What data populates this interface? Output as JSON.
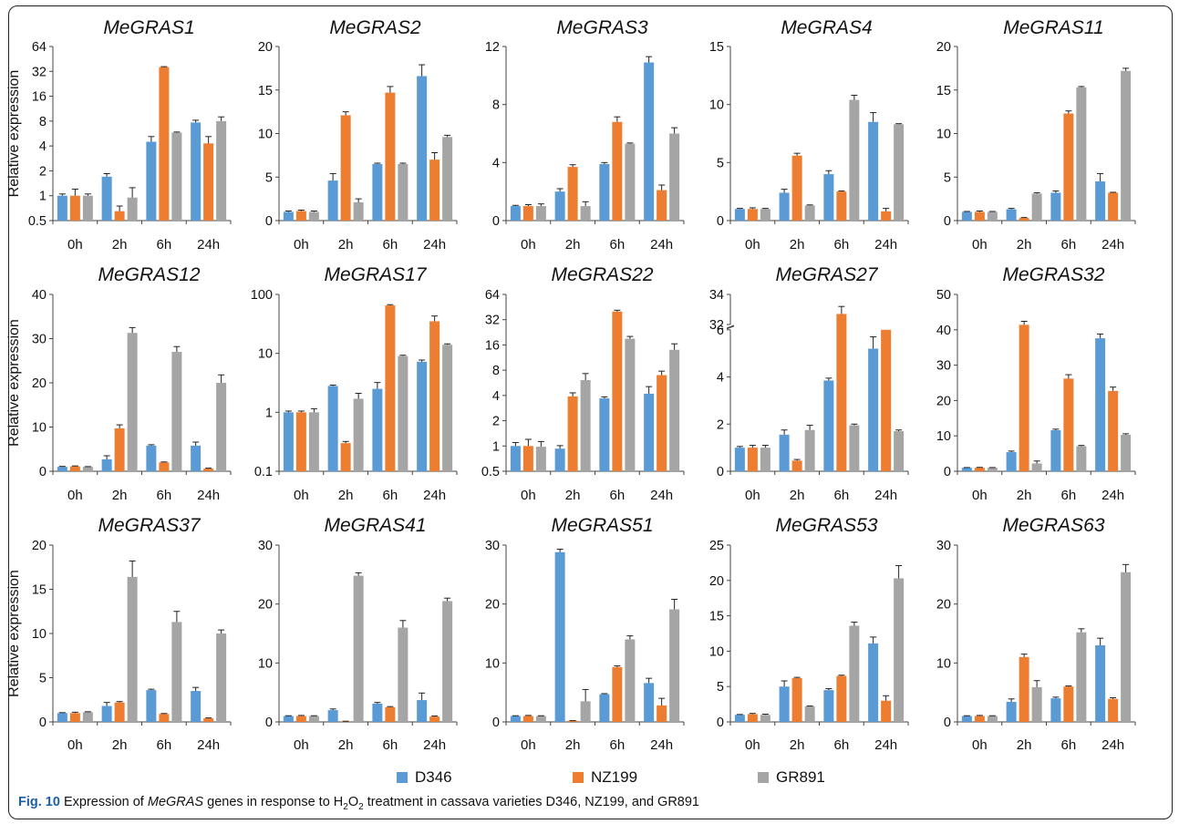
{
  "legend": {
    "items": [
      {
        "label": "D346",
        "color": "#5b9bd5"
      },
      {
        "label": "NZ199",
        "color": "#ed7d31"
      },
      {
        "label": "GR891",
        "color": "#a5a5a5"
      }
    ]
  },
  "caption": {
    "fig_label": "Fig. 10",
    "text_1": " Expression of ",
    "gene": "MeGRAS",
    "text_2": " genes in response to H",
    "sub_1": "2",
    "text_3": "O",
    "sub_2": "2",
    "text_4": " treatment in cassava varieties D346, NZ199, and GR891"
  },
  "chart_data": [
    {
      "type": "bar",
      "title": "MeGRAS1",
      "ylabel": "Relative expression",
      "yscale": "log2",
      "ylim": [
        0.5,
        64
      ],
      "yticks": [
        0.5,
        1,
        2,
        4,
        8,
        16,
        32,
        64
      ],
      "ytick_labels": [
        "0.5",
        "1",
        "2",
        "4",
        "8",
        "16",
        "32",
        "64"
      ],
      "categories": [
        "0h",
        "2h",
        "6h",
        "24h"
      ],
      "series": [
        {
          "name": "D346",
          "values": [
            1.0,
            1.7,
            4.5,
            7.7
          ],
          "errors": [
            0.05,
            0.15,
            0.7,
            0.5
          ]
        },
        {
          "name": "NZ199",
          "values": [
            1.0,
            0.65,
            36,
            4.3
          ],
          "errors": [
            0.2,
            0.1,
            0.5,
            0.9
          ]
        },
        {
          "name": "GR891",
          "values": [
            1.0,
            0.95,
            5.8,
            8.0
          ],
          "errors": [
            0.05,
            0.3,
            0.1,
            1.0
          ]
        }
      ]
    },
    {
      "type": "bar",
      "title": "MeGRAS2",
      "ylabel": "",
      "yscale": "linear",
      "ylim": [
        0,
        20
      ],
      "yticks": [
        0,
        5,
        10,
        15,
        20
      ],
      "categories": [
        "0h",
        "2h",
        "6h",
        "24h"
      ],
      "series": [
        {
          "name": "D346",
          "values": [
            1.0,
            4.6,
            6.5,
            16.6
          ],
          "errors": [
            0.1,
            0.8,
            0.1,
            1.3
          ]
        },
        {
          "name": "NZ199",
          "values": [
            1.1,
            12.1,
            14.7,
            7.0
          ],
          "errors": [
            0.1,
            0.4,
            0.7,
            0.8
          ]
        },
        {
          "name": "GR891",
          "values": [
            1.0,
            2.1,
            6.5,
            9.6
          ],
          "errors": [
            0.1,
            0.4,
            0.1,
            0.2
          ]
        }
      ]
    },
    {
      "type": "bar",
      "title": "MeGRAS3",
      "ylabel": "",
      "yscale": "linear",
      "ylim": [
        0,
        12
      ],
      "yticks": [
        0,
        4,
        8,
        12
      ],
      "categories": [
        "0h",
        "2h",
        "6h",
        "24h"
      ],
      "series": [
        {
          "name": "D346",
          "values": [
            1.0,
            2.0,
            3.9,
            10.9
          ],
          "errors": [
            0.05,
            0.2,
            0.1,
            0.4
          ]
        },
        {
          "name": "NZ199",
          "values": [
            1.0,
            3.7,
            6.8,
            2.1
          ],
          "errors": [
            0.1,
            0.15,
            0.35,
            0.35
          ]
        },
        {
          "name": "GR891",
          "values": [
            1.0,
            1.0,
            5.3,
            6.0
          ],
          "errors": [
            0.15,
            0.3,
            0.05,
            0.4
          ]
        }
      ]
    },
    {
      "type": "bar",
      "title": "MeGRAS4",
      "ylabel": "",
      "yscale": "linear",
      "ylim": [
        0,
        15
      ],
      "yticks": [
        0,
        5,
        10,
        15
      ],
      "categories": [
        "0h",
        "2h",
        "6h",
        "24h"
      ],
      "series": [
        {
          "name": "D346",
          "values": [
            1.0,
            2.4,
            4.0,
            8.5
          ],
          "errors": [
            0.05,
            0.3,
            0.3,
            0.8
          ]
        },
        {
          "name": "NZ199",
          "values": [
            1.0,
            5.6,
            2.5,
            0.8
          ],
          "errors": [
            0.1,
            0.2,
            0.05,
            0.25
          ]
        },
        {
          "name": "GR891",
          "values": [
            1.0,
            1.3,
            10.4,
            8.3
          ],
          "errors": [
            0.05,
            0.05,
            0.4,
            0.05
          ]
        }
      ]
    },
    {
      "type": "bar",
      "title": "MeGRAS11",
      "ylabel": "",
      "yscale": "linear",
      "ylim": [
        0,
        20
      ],
      "yticks": [
        0,
        5,
        10,
        15,
        20
      ],
      "categories": [
        "0h",
        "2h",
        "6h",
        "24h"
      ],
      "series": [
        {
          "name": "D346",
          "values": [
            1.0,
            1.3,
            3.2,
            4.5
          ],
          "errors": [
            0.05,
            0.1,
            0.2,
            0.9
          ]
        },
        {
          "name": "NZ199",
          "values": [
            1.0,
            0.3,
            12.3,
            3.2
          ],
          "errors": [
            0.1,
            0.05,
            0.3,
            0.05
          ]
        },
        {
          "name": "GR891",
          "values": [
            1.0,
            3.1,
            15.3,
            17.2
          ],
          "errors": [
            0.05,
            0.1,
            0.1,
            0.3
          ]
        }
      ]
    },
    {
      "type": "bar",
      "title": "MeGRAS12",
      "ylabel": "Relative expression",
      "yscale": "linear",
      "ylim": [
        0,
        40
      ],
      "yticks": [
        0,
        10,
        20,
        30,
        40
      ],
      "categories": [
        "0h",
        "2h",
        "6h",
        "24h"
      ],
      "series": [
        {
          "name": "D346",
          "values": [
            1.0,
            2.7,
            5.8,
            5.8
          ],
          "errors": [
            0.1,
            0.8,
            0.2,
            0.8
          ]
        },
        {
          "name": "NZ199",
          "values": [
            1.1,
            9.7,
            2.0,
            0.6
          ],
          "errors": [
            0.1,
            0.8,
            0.1,
            0.1
          ]
        },
        {
          "name": "GR891",
          "values": [
            1.0,
            31.3,
            27.0,
            20.0
          ],
          "errors": [
            0.05,
            1.2,
            1.2,
            1.8
          ]
        }
      ]
    },
    {
      "type": "bar",
      "title": "MeGRAS17",
      "ylabel": "",
      "yscale": "log10",
      "ylim": [
        0.1,
        100
      ],
      "yticks": [
        0.1,
        1,
        10,
        100
      ],
      "ytick_labels": [
        "0.1",
        "1",
        "10",
        "100"
      ],
      "categories": [
        "0h",
        "2h",
        "6h",
        "24h"
      ],
      "series": [
        {
          "name": "D346",
          "values": [
            1.0,
            2.8,
            2.5,
            7.2
          ],
          "errors": [
            0.05,
            0.1,
            0.7,
            0.5
          ]
        },
        {
          "name": "NZ199",
          "values": [
            1.0,
            0.3,
            65,
            35
          ],
          "errors": [
            0.05,
            0.02,
            2,
            8
          ]
        },
        {
          "name": "GR891",
          "values": [
            1.0,
            1.7,
            9.0,
            14
          ],
          "errors": [
            0.15,
            0.4,
            0.3,
            0.5
          ]
        }
      ]
    },
    {
      "type": "bar",
      "title": "MeGRAS22",
      "ylabel": "",
      "yscale": "log2",
      "ylim": [
        0.5,
        64
      ],
      "yticks": [
        0.5,
        1,
        2,
        4,
        8,
        16,
        32,
        64
      ],
      "ytick_labels": [
        "0.5",
        "1",
        "2",
        "4",
        "8",
        "16",
        "32",
        "64"
      ],
      "categories": [
        "0h",
        "2h",
        "6h",
        "24h"
      ],
      "series": [
        {
          "name": "D346",
          "values": [
            1.0,
            0.93,
            3.7,
            4.2
          ],
          "errors": [
            0.1,
            0.08,
            0.15,
            0.9
          ]
        },
        {
          "name": "NZ199",
          "values": [
            1.0,
            3.9,
            40,
            7.0
          ],
          "errors": [
            0.2,
            0.4,
            1.5,
            0.8
          ]
        },
        {
          "name": "GR891",
          "values": [
            0.98,
            6.1,
            19,
            14
          ],
          "errors": [
            0.15,
            1.2,
            1.2,
            2.5
          ]
        }
      ]
    },
    {
      "type": "bar",
      "title": "MeGRAS27",
      "ylabel": "",
      "yscale": "broken",
      "ylim": [
        0,
        34
      ],
      "ybreak": [
        6,
        32
      ],
      "yticks": [
        0,
        2,
        4,
        6,
        32,
        34
      ],
      "categories": [
        "0h",
        "2h",
        "6h",
        "24h"
      ],
      "series": [
        {
          "name": "D346",
          "values": [
            1.0,
            1.55,
            3.85,
            5.2
          ],
          "errors": [
            0.05,
            0.2,
            0.1,
            0.5
          ]
        },
        {
          "name": "NZ199",
          "values": [
            1.0,
            0.45,
            32.7,
            6.0
          ],
          "errors": [
            0.1,
            0.05,
            0.5,
            0
          ]
        },
        {
          "name": "GR891",
          "values": [
            1.0,
            1.75,
            1.95,
            1.7
          ],
          "errors": [
            0.1,
            0.2,
            0.05,
            0.05
          ]
        }
      ]
    },
    {
      "type": "bar",
      "title": "MeGRAS32",
      "ylabel": "",
      "yscale": "linear",
      "ylim": [
        0,
        50
      ],
      "yticks": [
        0,
        10,
        20,
        30,
        40,
        50
      ],
      "categories": [
        "0h",
        "2h",
        "6h",
        "24h"
      ],
      "series": [
        {
          "name": "D346",
          "values": [
            1.0,
            5.4,
            11.6,
            37.6
          ],
          "errors": [
            0.05,
            0.3,
            0.3,
            1.2
          ]
        },
        {
          "name": "NZ199",
          "values": [
            1.0,
            41.4,
            26.2,
            22.7
          ],
          "errors": [
            0.1,
            1.0,
            1.1,
            1.1
          ]
        },
        {
          "name": "GR891",
          "values": [
            1.0,
            2.2,
            7.1,
            10.3
          ],
          "errors": [
            0.05,
            0.7,
            0.2,
            0.3
          ]
        }
      ]
    },
    {
      "type": "bar",
      "title": "MeGRAS37",
      "ylabel": "Relative expression",
      "yscale": "linear",
      "ylim": [
        0,
        20
      ],
      "yticks": [
        0,
        5,
        10,
        15,
        20
      ],
      "categories": [
        "0h",
        "2h",
        "6h",
        "24h"
      ],
      "series": [
        {
          "name": "D346",
          "values": [
            1.0,
            1.8,
            3.6,
            3.5
          ],
          "errors": [
            0.05,
            0.4,
            0.1,
            0.4
          ]
        },
        {
          "name": "NZ199",
          "values": [
            1.0,
            2.2,
            0.9,
            0.4
          ],
          "errors": [
            0.1,
            0.1,
            0.05,
            0.05
          ]
        },
        {
          "name": "GR891",
          "values": [
            1.1,
            16.4,
            11.3,
            10.0
          ],
          "errors": [
            0.05,
            1.8,
            1.2,
            0.4
          ]
        }
      ]
    },
    {
      "type": "bar",
      "title": "MeGRAS41",
      "ylabel": "",
      "yscale": "linear",
      "ylim": [
        0,
        30
      ],
      "yticks": [
        0,
        10,
        20,
        30
      ],
      "categories": [
        "0h",
        "2h",
        "6h",
        "24h"
      ],
      "series": [
        {
          "name": "D346",
          "values": [
            1.0,
            2.0,
            3.1,
            3.7
          ],
          "errors": [
            0.05,
            0.2,
            0.2,
            1.2
          ]
        },
        {
          "name": "NZ199",
          "values": [
            1.0,
            0.1,
            2.5,
            0.9
          ],
          "errors": [
            0.1,
            0.02,
            0.1,
            0.1
          ]
        },
        {
          "name": "GR891",
          "values": [
            1.0,
            24.8,
            16.0,
            20.5
          ],
          "errors": [
            0.05,
            0.5,
            1.2,
            0.5
          ]
        }
      ]
    },
    {
      "type": "bar",
      "title": "MeGRAS51",
      "ylabel": "",
      "yscale": "linear",
      "ylim": [
        0,
        30
      ],
      "yticks": [
        0,
        10,
        20,
        30
      ],
      "categories": [
        "0h",
        "2h",
        "6h",
        "24h"
      ],
      "series": [
        {
          "name": "D346",
          "values": [
            1.0,
            28.8,
            4.7,
            6.6
          ],
          "errors": [
            0.05,
            0.5,
            0.1,
            0.8
          ]
        },
        {
          "name": "NZ199",
          "values": [
            1.0,
            0.2,
            9.3,
            2.8
          ],
          "errors": [
            0.1,
            0.02,
            0.2,
            1.2
          ]
        },
        {
          "name": "GR891",
          "values": [
            1.0,
            3.5,
            14.0,
            19.1
          ],
          "errors": [
            0.05,
            2.0,
            0.6,
            1.7
          ]
        }
      ]
    },
    {
      "type": "bar",
      "title": "MeGRAS53",
      "ylabel": "",
      "yscale": "linear",
      "ylim": [
        0,
        25
      ],
      "yticks": [
        0,
        5,
        10,
        15,
        20,
        25
      ],
      "categories": [
        "0h",
        "2h",
        "6h",
        "24h"
      ],
      "series": [
        {
          "name": "D346",
          "values": [
            1.0,
            5.0,
            4.5,
            11.1
          ],
          "errors": [
            0.05,
            0.8,
            0.2,
            0.9
          ]
        },
        {
          "name": "NZ199",
          "values": [
            1.1,
            6.2,
            6.5,
            3.0
          ],
          "errors": [
            0.1,
            0.1,
            0.1,
            0.7
          ]
        },
        {
          "name": "GR891",
          "values": [
            1.0,
            2.2,
            13.6,
            20.3
          ],
          "errors": [
            0.1,
            0.05,
            0.5,
            1.8
          ]
        }
      ]
    },
    {
      "type": "bar",
      "title": "MeGRAS63",
      "ylabel": "",
      "yscale": "linear",
      "ylim": [
        0,
        30
      ],
      "yticks": [
        0,
        10,
        20,
        30
      ],
      "categories": [
        "0h",
        "2h",
        "6h",
        "24h"
      ],
      "series": [
        {
          "name": "D346",
          "values": [
            1.0,
            3.4,
            4.0,
            13.0
          ],
          "errors": [
            0.05,
            0.5,
            0.2,
            1.2
          ]
        },
        {
          "name": "NZ199",
          "values": [
            1.0,
            11.0,
            6.0,
            3.9
          ],
          "errors": [
            0.1,
            0.5,
            0.1,
            0.2
          ]
        },
        {
          "name": "GR891",
          "values": [
            1.0,
            5.9,
            15.2,
            25.4
          ],
          "errors": [
            0.05,
            1.1,
            0.6,
            1.3
          ]
        }
      ]
    }
  ]
}
